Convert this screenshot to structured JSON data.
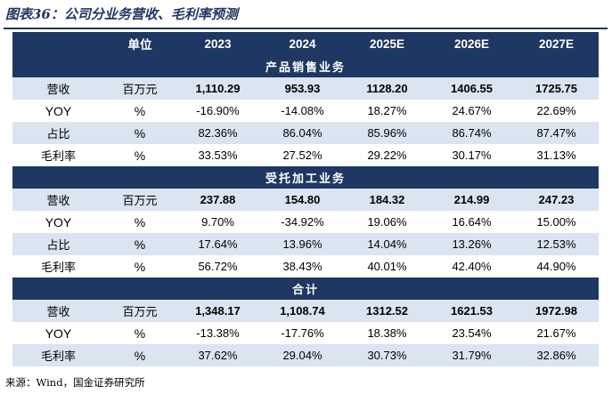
{
  "figure_title": "图表36：公司分业务营收、毛利率预测",
  "source": "来源：Wind，国金证券研究所",
  "colors": {
    "header_bg": "#1f3763",
    "band_bg": "#dbe4f1",
    "text_white": "#ffffff"
  },
  "table": {
    "headers": [
      "",
      "单位",
      "2023",
      "2024",
      "2025E",
      "2026E",
      "2027E"
    ],
    "sections": [
      {
        "title": "产品销售业务",
        "rows": [
          {
            "label": "营收",
            "unit": "百万元",
            "values": [
              "1,110.29",
              "953.93",
              "1128.20",
              "1406.55",
              "1725.75"
            ],
            "bold": true
          },
          {
            "label": "YOY",
            "unit": "%",
            "values": [
              "-16.90%",
              "-14.08%",
              "18.27%",
              "24.67%",
              "22.69%"
            ],
            "bold": false
          },
          {
            "label": "占比",
            "unit": "%",
            "values": [
              "82.36%",
              "86.04%",
              "85.96%",
              "86.74%",
              "87.47%"
            ],
            "bold": false
          },
          {
            "label": "毛利率",
            "unit": "%",
            "values": [
              "33.53%",
              "27.52%",
              "29.22%",
              "30.17%",
              "31.13%"
            ],
            "bold": false
          }
        ]
      },
      {
        "title": "受托加工业务",
        "rows": [
          {
            "label": "营收",
            "unit": "百万元",
            "values": [
              "237.88",
              "154.80",
              "184.32",
              "214.99",
              "247.23"
            ],
            "bold": true
          },
          {
            "label": "YOY",
            "unit": "%",
            "values": [
              "9.70%",
              "-34.92%",
              "19.06%",
              "16.64%",
              "15.00%"
            ],
            "bold": false
          },
          {
            "label": "占比",
            "unit": "%",
            "values": [
              "17.64%",
              "13.96%",
              "14.04%",
              "13.26%",
              "12.53%"
            ],
            "bold": false
          },
          {
            "label": "毛利率",
            "unit": "%",
            "values": [
              "56.72%",
              "38.43%",
              "40.01%",
              "42.40%",
              "44.90%"
            ],
            "bold": false
          }
        ]
      },
      {
        "title": "合计",
        "rows": [
          {
            "label": "营收",
            "unit": "百万元",
            "values": [
              "1,348.17",
              "1,108.74",
              "1312.52",
              "1621.53",
              "1972.98"
            ],
            "bold": true
          },
          {
            "label": "YOY",
            "unit": "%",
            "values": [
              "-13.38%",
              "-17.76%",
              "18.38%",
              "23.54%",
              "21.67%"
            ],
            "bold": false
          },
          {
            "label": "毛利率",
            "unit": "%",
            "values": [
              "37.62%",
              "29.04%",
              "30.73%",
              "31.79%",
              "32.86%"
            ],
            "bold": false
          }
        ]
      }
    ]
  }
}
